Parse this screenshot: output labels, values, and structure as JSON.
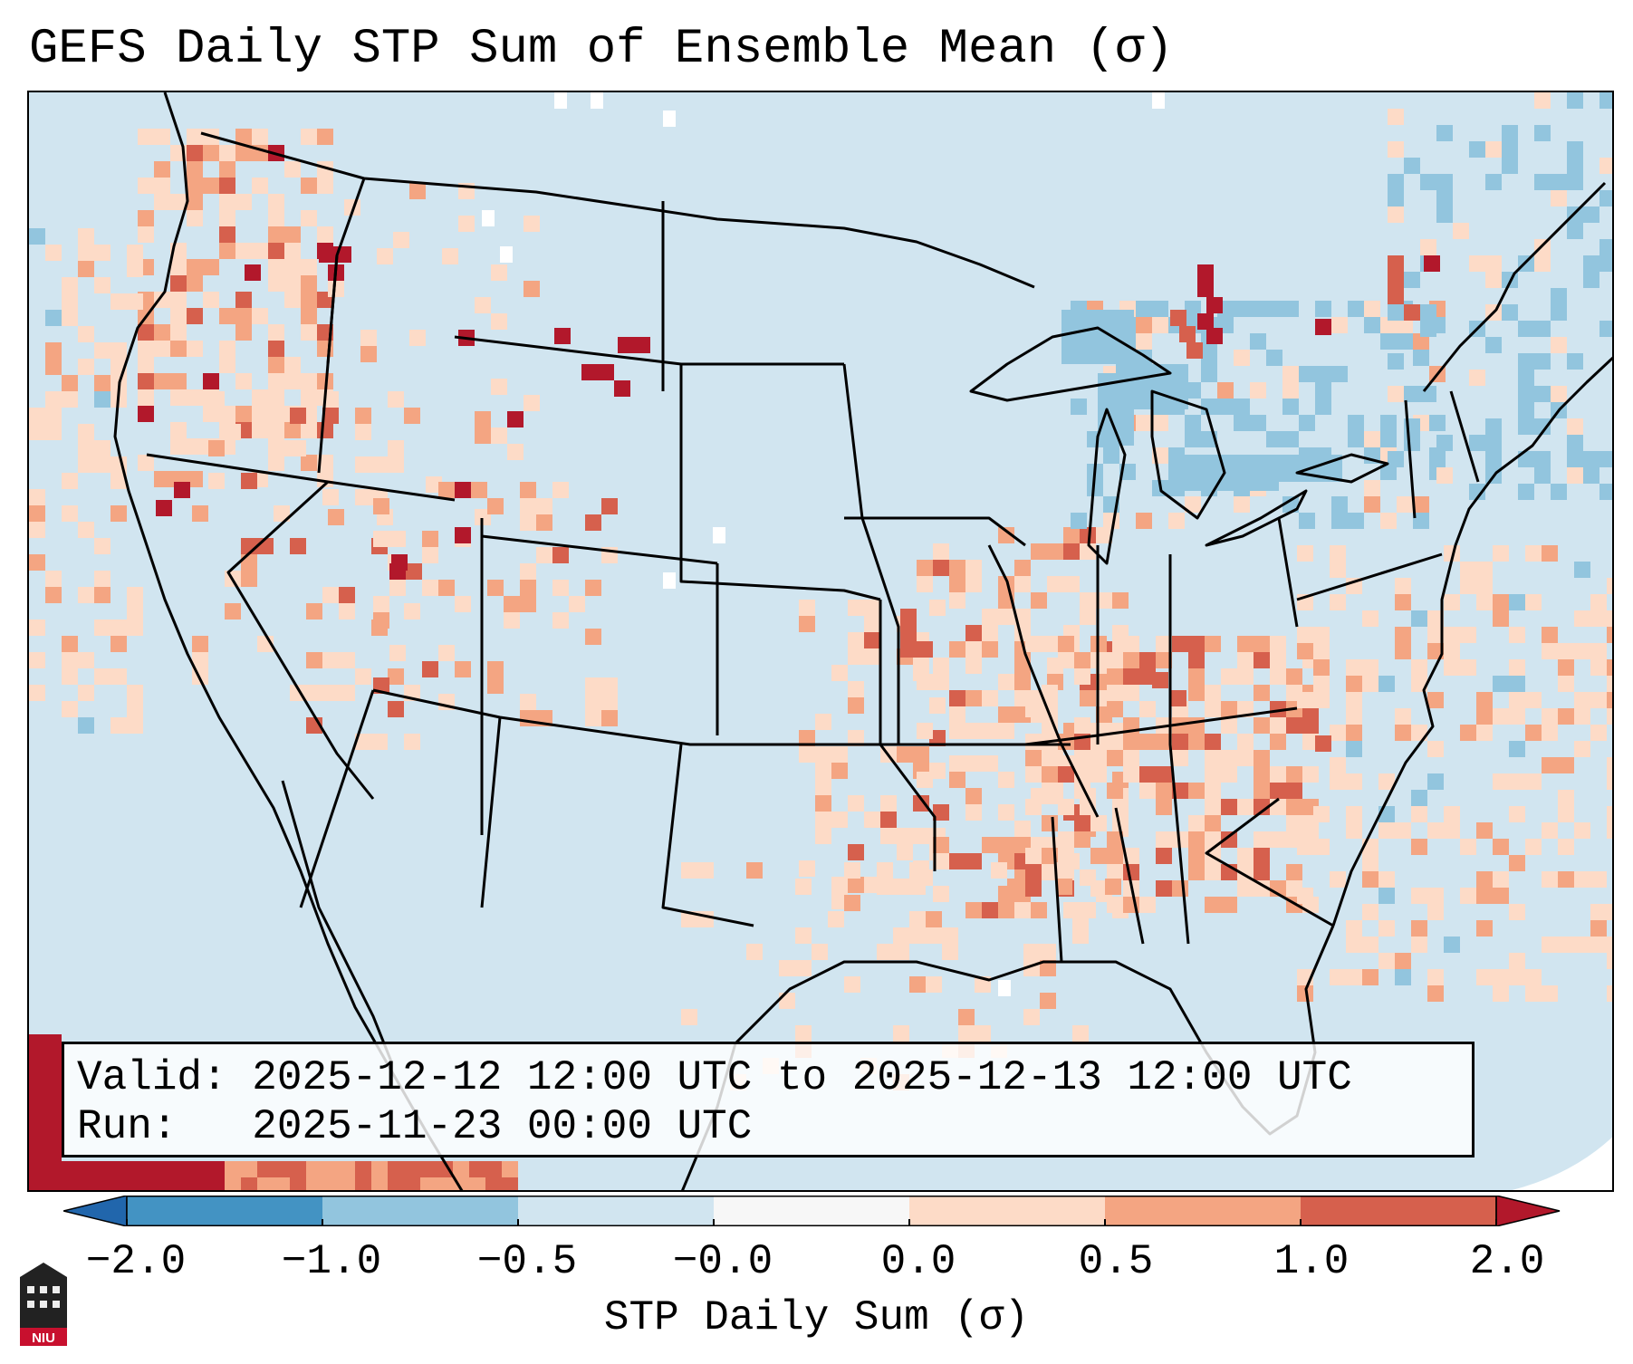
{
  "title": "GEFS Daily STP Sum of Ensemble Mean (σ)",
  "info": {
    "valid_label": "Valid:",
    "valid_value": "2025-12-12 12:00 UTC to 2025-12-13 12:00 UTC",
    "run_label": "Run:",
    "run_value": "2025-11-23 00:00 UTC"
  },
  "colorbar": {
    "label": "STP Daily Sum (σ)",
    "ticks": [
      "−2.0",
      "−1.0",
      "−0.5",
      "−0.0",
      "0.0",
      "0.5",
      "1.0",
      "2.0"
    ],
    "colors": [
      "#4393c3",
      "#92c5de",
      "#d1e5f0",
      "#f7f7f7",
      "#fddbc7",
      "#f4a582",
      "#d6604d"
    ],
    "under_color": "#2166ac",
    "over_color": "#b2182b"
  },
  "map_colors": {
    "ocean_neutral": "#d1e5f0",
    "border": "#000000"
  },
  "logo": {
    "text": "NIU",
    "brand_color": "#c8102e"
  }
}
